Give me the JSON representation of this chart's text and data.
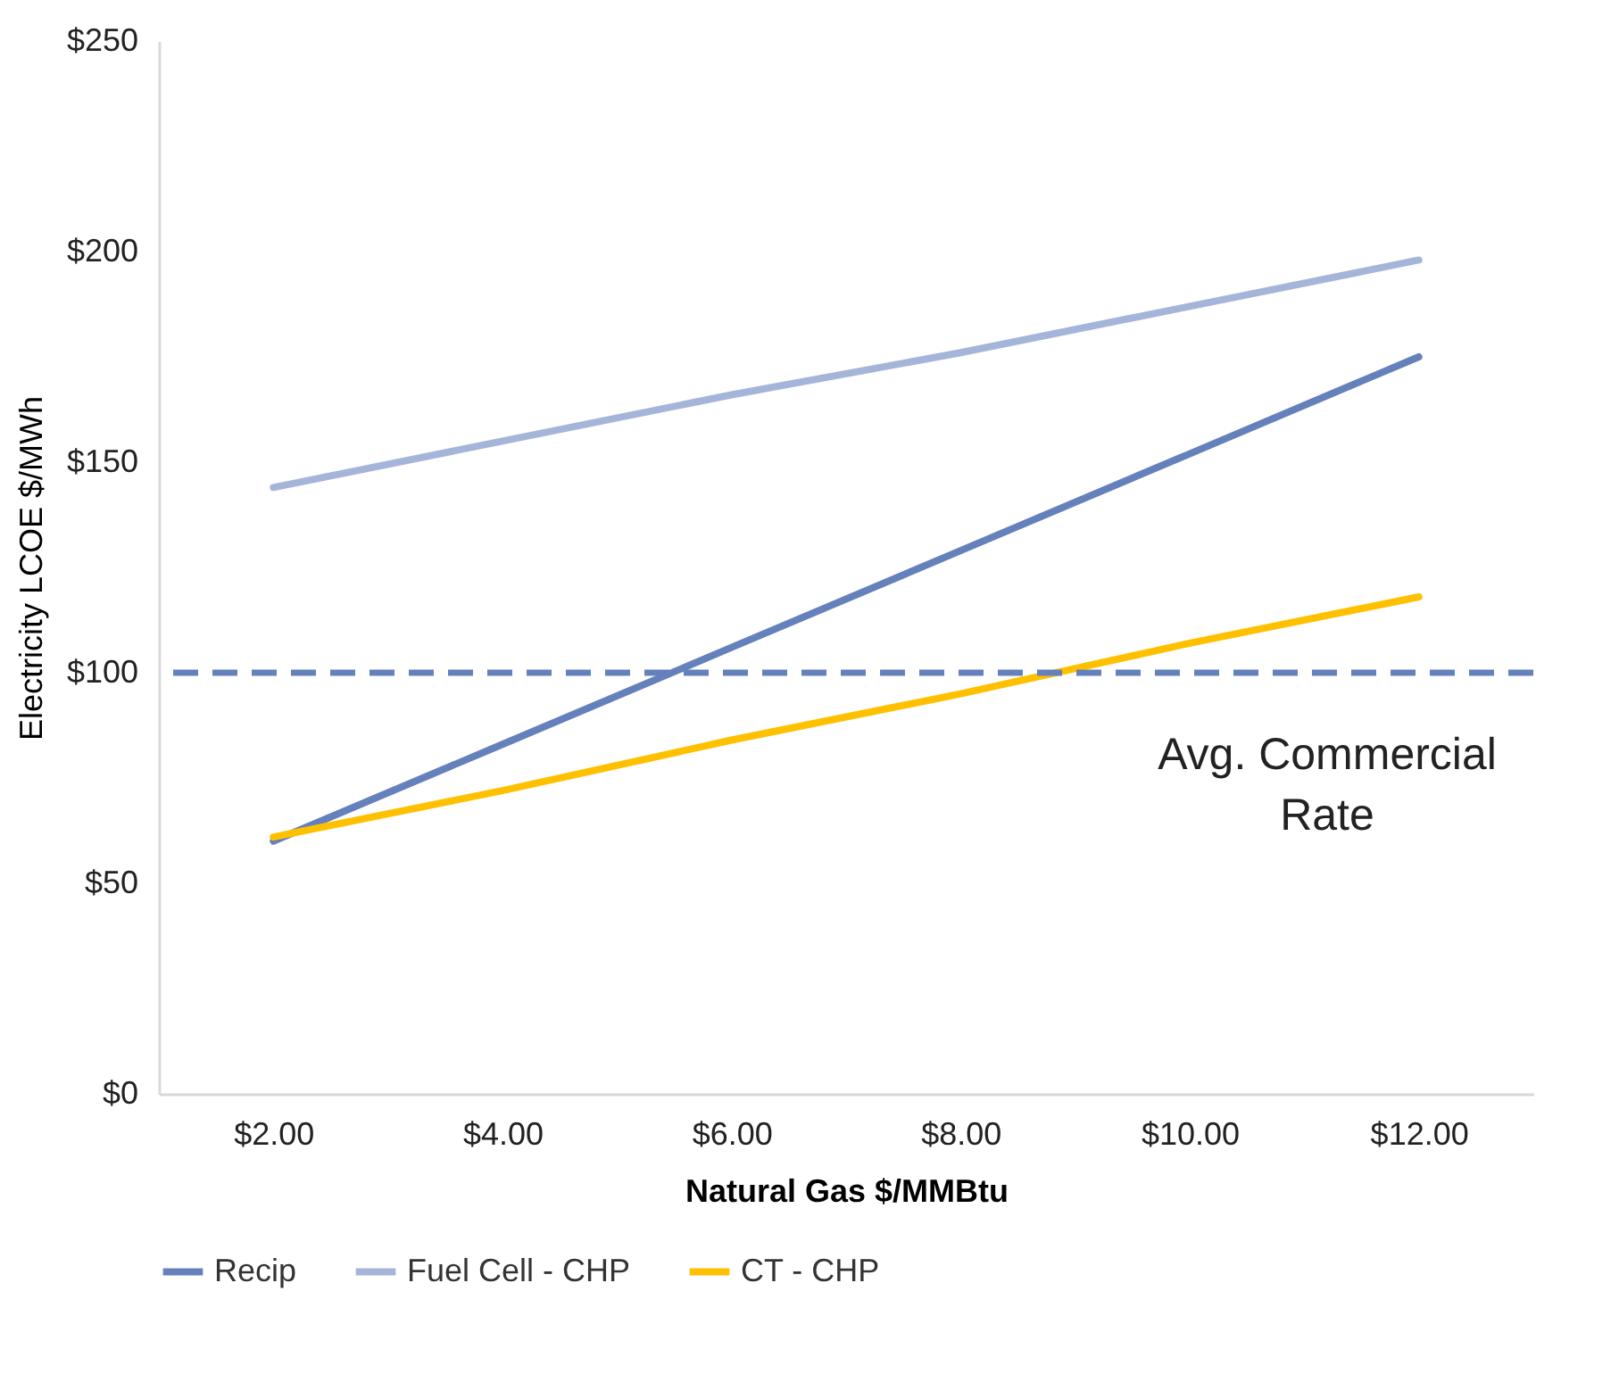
{
  "chart_data": {
    "type": "line",
    "xlabel": "Natural Gas $/MMBtu",
    "ylabel": "Electricity LCOE $/MWh",
    "categories": [
      "$2.00",
      "$4.00",
      "$6.00",
      "$8.00",
      "$10.00",
      "$12.00"
    ],
    "series": [
      {
        "name": "Recip",
        "color": "#6581bb",
        "values": [
          60,
          83,
          106,
          129,
          152,
          175
        ]
      },
      {
        "name": "Fuel Cell - CHP",
        "color": "#a5b5d9",
        "values": [
          144,
          155,
          166,
          176,
          187,
          198
        ]
      },
      {
        "name": "CT - CHP",
        "color": "#ffc000",
        "values": [
          61,
          72,
          84,
          95,
          107,
          118
        ]
      }
    ],
    "ylim": [
      0,
      250
    ],
    "yticks": [
      {
        "value": 0,
        "label": "$0"
      },
      {
        "value": 50,
        "label": "$50"
      },
      {
        "value": 100,
        "label": "$100"
      },
      {
        "value": 150,
        "label": "$150"
      },
      {
        "value": 200,
        "label": "$200"
      },
      {
        "value": 250,
        "label": "$250"
      }
    ],
    "ref_lines": [
      {
        "axis": "y",
        "value": 100,
        "label": "Avg. Commercial Rate",
        "color": "#6581bb",
        "line_style": "dashed"
      }
    ],
    "grid": false,
    "legend": "bottom",
    "line_style": "solid",
    "marker": "none"
  }
}
